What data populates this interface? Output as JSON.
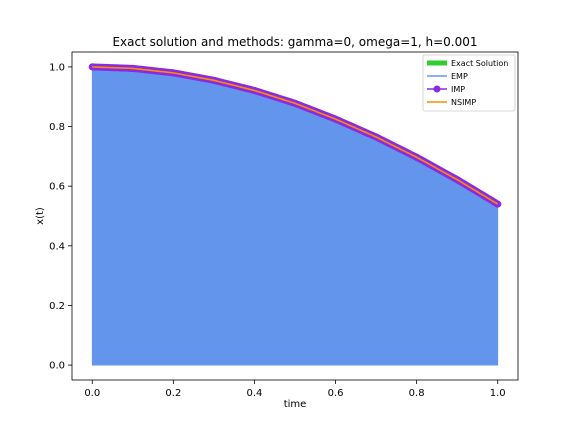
{
  "chart_data": {
    "type": "line",
    "title": "Exact solution and methods: gamma=0, omega=1, h=0.001",
    "xlabel": "time",
    "ylabel": "x(t)",
    "xlim": [
      -0.05,
      1.05
    ],
    "ylim": [
      -0.05,
      1.05
    ],
    "xticks": [
      0.0,
      0.2,
      0.4,
      0.6,
      0.8,
      1.0
    ],
    "xtick_labels": [
      "0.0",
      "0.2",
      "0.4",
      "0.6",
      "0.8",
      "1.0"
    ],
    "yticks": [
      0.0,
      0.2,
      0.4,
      0.6,
      0.8,
      1.0
    ],
    "ytick_labels": [
      "0.0",
      "0.2",
      "0.4",
      "0.6",
      "0.8",
      "1.0"
    ],
    "grid": false,
    "legend_position": "top-right",
    "x": [
      0.0,
      0.1,
      0.2,
      0.3,
      0.4,
      0.5,
      0.6,
      0.7,
      0.8,
      0.9,
      1.0
    ],
    "series": [
      {
        "name": "Exact Solution",
        "color": "#32cd32",
        "style": "thick-line",
        "values": [
          1.0,
          0.995,
          0.98,
          0.955,
          0.921,
          0.878,
          0.825,
          0.765,
          0.697,
          0.622,
          0.54
        ]
      },
      {
        "name": "EMP",
        "color": "#6495ed",
        "style": "dense-oscillating-fill",
        "values": [
          1.0,
          0.995,
          0.98,
          0.955,
          0.921,
          0.878,
          0.825,
          0.765,
          0.697,
          0.622,
          0.54
        ]
      },
      {
        "name": "IMP",
        "color": "#8a2be2",
        "style": "line-with-circle-markers",
        "values": [
          1.0,
          0.995,
          0.98,
          0.955,
          0.921,
          0.878,
          0.825,
          0.765,
          0.697,
          0.622,
          0.54
        ]
      },
      {
        "name": "NSIMP",
        "color": "#ff8c00",
        "style": "thin-line",
        "values": [
          1.0,
          0.995,
          0.98,
          0.955,
          0.921,
          0.878,
          0.825,
          0.765,
          0.697,
          0.622,
          0.54
        ]
      }
    ]
  }
}
